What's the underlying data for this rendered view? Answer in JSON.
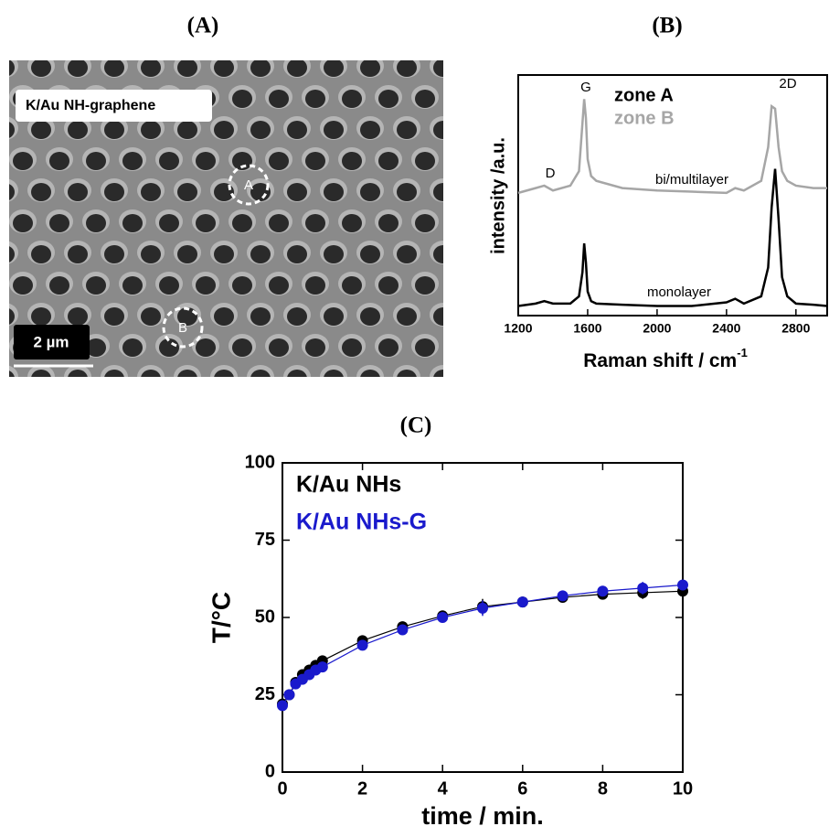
{
  "figure": {
    "panel_labels": [
      "(A)",
      "(B)",
      "(C)"
    ],
    "image": {
      "caption": "K/Au NH-graphene",
      "markers": [
        "A",
        "B"
      ],
      "scale_bar": "2 µm"
    }
  },
  "chart_data": [
    {
      "type": "line",
      "x_label": "Raman  shift / cm",
      "x_label_superscript": "-1",
      "y_label": "intensity /a.u.",
      "x": [
        1200,
        1300,
        1350,
        1400,
        1500,
        1550,
        1570,
        1580,
        1590,
        1600,
        1620,
        1650,
        1800,
        2000,
        2200,
        2400,
        2450,
        2500,
        2600,
        2640,
        2660,
        2680,
        2700,
        2720,
        2750,
        2800,
        2900,
        2980
      ],
      "series": [
        {
          "name": "zone A",
          "color": "#000000",
          "values": [
            0.4,
            0.5,
            0.6,
            0.5,
            0.5,
            0.8,
            1.8,
            3.0,
            2.2,
            1.0,
            0.6,
            0.5,
            0.45,
            0.4,
            0.4,
            0.55,
            0.7,
            0.5,
            0.8,
            2.0,
            4.5,
            6.1,
            4.0,
            1.6,
            0.8,
            0.5,
            0.45,
            0.4
          ]
        },
        {
          "name": "zone B",
          "color": "#a6a6a6",
          "values": [
            5.1,
            5.3,
            5.4,
            5.2,
            5.4,
            6.0,
            8.0,
            9.0,
            8.2,
            6.5,
            5.8,
            5.6,
            5.3,
            5.2,
            5.15,
            5.1,
            5.3,
            5.2,
            5.6,
            7.0,
            8.7,
            8.6,
            7.0,
            6.0,
            5.6,
            5.4,
            5.3,
            5.3
          ]
        }
      ],
      "annotations": [
        "D",
        "G",
        "2D",
        "bi/multilayer",
        "monolayer"
      ],
      "xlim": [
        1200,
        2980
      ],
      "xticks": [
        1200,
        1600,
        2000,
        2400,
        2800
      ],
      "ylim": [
        0,
        10
      ]
    },
    {
      "type": "errorbar",
      "x_label": "time / min.",
      "y_label": "T/°C",
      "x": [
        0,
        0.17,
        0.33,
        0.5,
        0.67,
        0.83,
        1,
        2,
        3,
        4,
        5,
        6,
        7,
        8,
        9,
        10
      ],
      "series": [
        {
          "name": "K/Au NHs",
          "color": "#000000",
          "values": [
            22,
            25,
            29,
            31.5,
            33,
            34.5,
            36,
            42.5,
            47,
            50.5,
            53.5,
            55,
            56.5,
            57.5,
            58,
            58.5
          ],
          "errors": [
            1.2,
            1,
            1,
            1,
            1,
            1,
            1,
            1,
            1,
            1.5,
            2.5,
            1,
            1.5,
            1.5,
            2,
            1.5
          ]
        },
        {
          "name": "K/Au NHs-G",
          "color": "#1a1acc",
          "values": [
            21.5,
            25,
            28.5,
            30,
            31.5,
            33,
            34,
            41,
            46,
            50,
            53,
            55,
            57,
            58.5,
            59.5,
            60.5
          ],
          "errors": [
            1.2,
            1,
            1,
            1,
            1,
            1,
            1,
            1,
            1,
            1.5,
            2.5,
            1,
            1.5,
            1.5,
            2,
            1.5
          ]
        }
      ],
      "xlim": [
        0,
        10
      ],
      "xticks": [
        0,
        2,
        4,
        6,
        8,
        10
      ],
      "ylim": [
        0,
        100
      ],
      "yticks": [
        0,
        25,
        50,
        75,
        100
      ]
    }
  ]
}
